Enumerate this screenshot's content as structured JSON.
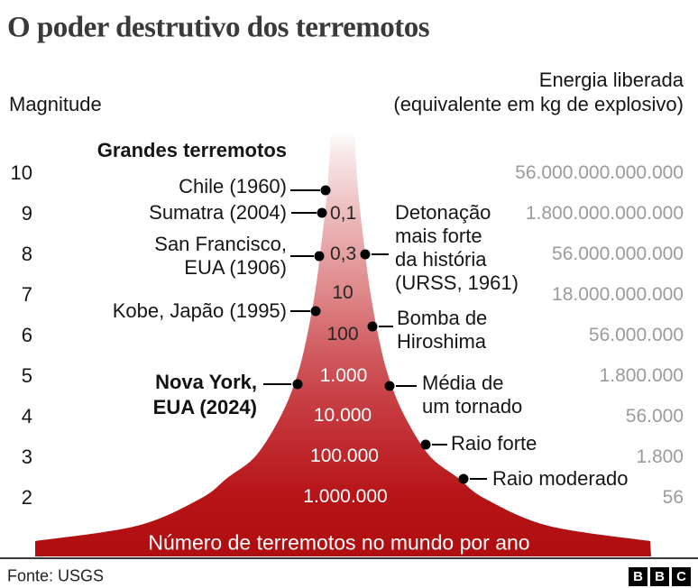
{
  "title": "O poder destrutivo dos terremotos",
  "header": {
    "left": "Magnitude",
    "right_line1": "Energia liberada",
    "right_line2": "(equivalente em kg de explosivo)"
  },
  "group_header": "Grandes terremotos",
  "magnitudes": [
    "10",
    "9",
    "8",
    "7",
    "6",
    "5",
    "4",
    "3",
    "2"
  ],
  "energies": [
    "56.000.000.000.000",
    "1.800.000.000.000",
    "56.000.000.000",
    "18.000.000.000",
    "56.000.000",
    "1.800.000",
    "56.000",
    "1.800",
    "56"
  ],
  "funnel_counts": [
    "0,1",
    "0,3",
    "10",
    "100",
    "1.000",
    "10.000",
    "100.000",
    "1.000.000"
  ],
  "quakes": {
    "chile": "Chile (1960)",
    "sumatra": "Sumatra (2004)",
    "sf1": "San Francisco,",
    "sf2": "EUA (1906)",
    "kobe": "Kobe, Japão (1995)",
    "ny1": "Nova York,",
    "ny2": "EUA (2024)"
  },
  "comparisons": {
    "urss": [
      "Detonação",
      "mais forte",
      "da história",
      "(URSS, 1961)"
    ],
    "hiroshima": [
      "Bomba de",
      "Hiroshima"
    ],
    "tornado": [
      "Média de",
      "um tornado"
    ],
    "raio_forte": "Raio forte",
    "raio_moderado": "Raio moderado"
  },
  "base_label": "Número de terremotos no mundo por ano",
  "footer": {
    "source": "Fonte: USGS",
    "logo": [
      "B",
      "B",
      "C"
    ]
  },
  "colors": {
    "funnel_top": "#f7e3e3",
    "funnel_bottom": "#b00d10",
    "value_gray": "#9b9b9b",
    "text_dark": "#161616",
    "title_gray": "#3a3a3a"
  },
  "chart_data": {
    "type": "area",
    "title": "O poder destrutivo dos terremotos",
    "xlabel": "Magnitude",
    "ylabel": "Energia liberada (equivalente em kg de explosivo)",
    "footnote": "Número de terremotos no mundo por ano",
    "source": "Fonte: USGS",
    "magnitude_range": [
      2,
      10
    ],
    "rows": [
      {
        "magnitude": 10,
        "energy_kg": "56.000.000.000.000",
        "earthquakes_per_year": null,
        "example": "Chile (1960)",
        "comparison": null
      },
      {
        "magnitude": 9,
        "energy_kg": "1.800.000.000.000",
        "earthquakes_per_year": "0,1",
        "example": "Sumatra (2004)",
        "comparison": null
      },
      {
        "magnitude": 8,
        "energy_kg": "56.000.000.000",
        "earthquakes_per_year": "0,3",
        "example": "San Francisco, EUA (1906)",
        "comparison": "Detonação mais forte da história (URSS, 1961)"
      },
      {
        "magnitude": 7,
        "energy_kg": "18.000.000.000",
        "earthquakes_per_year": "10",
        "example": "Kobe, Japão (1995)",
        "comparison": null
      },
      {
        "magnitude": 6,
        "energy_kg": "56.000.000",
        "earthquakes_per_year": "100",
        "example": null,
        "comparison": "Bomba de Hiroshima"
      },
      {
        "magnitude": 5,
        "energy_kg": "1.800.000",
        "earthquakes_per_year": "1.000",
        "example": "Nova York, EUA (2024)",
        "comparison": "Média de um tornado"
      },
      {
        "magnitude": 4,
        "energy_kg": "56.000",
        "earthquakes_per_year": "10.000",
        "example": null,
        "comparison": null
      },
      {
        "magnitude": 3,
        "energy_kg": "1.800",
        "earthquakes_per_year": "100.000",
        "example": null,
        "comparison": "Raio forte"
      },
      {
        "magnitude": 2,
        "energy_kg": "56",
        "earthquakes_per_year": "1.000.000",
        "example": null,
        "comparison": "Raio moderado"
      }
    ]
  }
}
